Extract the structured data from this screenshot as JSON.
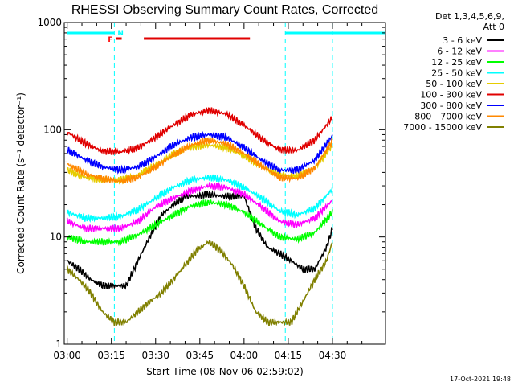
{
  "chart_data": {
    "type": "line",
    "title": "RHESSI Observing Summary Count Rates, Corrected",
    "xlabel": "Start Time (08-Nov-06 02:59:02)",
    "ylabel": "Corrected Count Rate (s⁻¹ detector⁻¹)",
    "x_ticks": [
      "03:00",
      "03:15",
      "03:30",
      "03:45",
      "04:00",
      "04:15",
      "04:30"
    ],
    "x_tick_minutes": [
      0,
      15,
      30,
      45,
      60,
      75,
      90
    ],
    "xlim_minutes": [
      -1,
      108
    ],
    "y_scale": "log",
    "ylim": [
      1,
      1000
    ],
    "y_ticks": [
      "1",
      "10",
      "100",
      "1000"
    ],
    "y_tick_values": [
      1,
      10,
      100,
      1000
    ],
    "legend_header": [
      "Det 1,3,4,5,6,9,",
      "Att 0"
    ],
    "legend_position": "right",
    "series": [
      {
        "name": "3 - 6 keV",
        "color": "#000000",
        "x": [
          0,
          4,
          8,
          12,
          16,
          20,
          24,
          28,
          32,
          36,
          40,
          44,
          48,
          52,
          56,
          60,
          64,
          68,
          72,
          76,
          80,
          84,
          88,
          90
        ],
        "y": [
          6,
          5,
          4,
          3.5,
          3.5,
          3.5,
          6,
          10,
          16,
          20,
          24,
          24,
          25,
          24,
          24,
          24,
          12,
          8,
          7,
          6,
          5,
          5,
          8,
          12
        ]
      },
      {
        "name": "6 - 12 keV",
        "color": "#ff00ff",
        "x": [
          0,
          6,
          12,
          18,
          24,
          30,
          36,
          42,
          48,
          54,
          60,
          66,
          72,
          78,
          84,
          90
        ],
        "y": [
          14,
          12,
          12,
          12,
          14,
          19,
          23,
          27,
          30,
          29,
          25,
          19,
          14,
          13,
          15,
          22
        ]
      },
      {
        "name": "12 - 25 keV",
        "color": "#00ff00",
        "x": [
          0,
          6,
          12,
          18,
          24,
          30,
          36,
          42,
          48,
          54,
          60,
          66,
          72,
          78,
          84,
          90
        ],
        "y": [
          10,
          9,
          9,
          9,
          10.5,
          13,
          16,
          19.5,
          21,
          20,
          17,
          13,
          10,
          9.5,
          11,
          17
        ]
      },
      {
        "name": "25 - 50 keV",
        "color": "#00ffff",
        "x": [
          0,
          6,
          12,
          18,
          24,
          30,
          36,
          42,
          48,
          54,
          60,
          66,
          72,
          78,
          84,
          90
        ],
        "y": [
          17,
          15,
          15,
          15.5,
          18,
          23,
          29,
          34,
          36,
          34,
          29,
          23,
          17.5,
          16,
          18.5,
          28
        ]
      },
      {
        "name": "50 - 100 keV",
        "color": "#e6cc00",
        "x": [
          0,
          6,
          12,
          18,
          24,
          30,
          36,
          42,
          48,
          54,
          60,
          66,
          72,
          78,
          84,
          90
        ],
        "y": [
          42,
          36,
          34,
          34,
          38,
          47,
          59,
          69,
          72,
          68,
          57,
          45,
          38,
          37,
          44,
          72
        ]
      },
      {
        "name": "100 - 300 keV",
        "color": "#e00000",
        "x": [
          0,
          6,
          12,
          18,
          24,
          30,
          36,
          42,
          48,
          54,
          60,
          66,
          72,
          78,
          84,
          90
        ],
        "y": [
          95,
          75,
          63,
          62,
          68,
          85,
          110,
          138,
          152,
          140,
          110,
          82,
          65,
          64,
          80,
          130
        ]
      },
      {
        "name": "300 - 800 keV",
        "color": "#0000ff",
        "x": [
          0,
          6,
          12,
          18,
          24,
          30,
          36,
          42,
          48,
          54,
          60,
          66,
          72,
          78,
          84,
          90
        ],
        "y": [
          65,
          53,
          45,
          42,
          45,
          56,
          72,
          85,
          90,
          85,
          68,
          52,
          42,
          42,
          52,
          88
        ]
      },
      {
        "name": "800 - 7000 keV",
        "color": "#ff8800",
        "x": [
          0,
          6,
          12,
          18,
          24,
          30,
          36,
          42,
          48,
          54,
          60,
          66,
          72,
          78,
          84,
          90
        ],
        "y": [
          48,
          39,
          35,
          33,
          36,
          45,
          58,
          72,
          80,
          74,
          60,
          46,
          36,
          35,
          44,
          78
        ]
      },
      {
        "name": "7000 - 15000 keV",
        "color": "#808000",
        "x": [
          0,
          4,
          8,
          12,
          16,
          20,
          24,
          28,
          32,
          36,
          40,
          44,
          48,
          52,
          56,
          60,
          64,
          68,
          72,
          76,
          80,
          84,
          88,
          90
        ],
        "y": [
          5,
          4,
          3,
          2,
          1.6,
          1.6,
          2,
          2.5,
          3,
          4,
          5.5,
          7.5,
          9,
          7.5,
          5.5,
          3.5,
          2,
          1.6,
          1.6,
          1.6,
          2.5,
          4,
          6,
          9
        ]
      }
    ],
    "annotations": {
      "flag_labels": [
        {
          "text": "F",
          "color": "#ff0000"
        },
        {
          "text": "N",
          "color": "#00ffff"
        }
      ],
      "day_segments_minutes": [
        [
          0,
          16
        ],
        [
          74,
          108
        ]
      ],
      "flare_segment_minutes": [
        26,
        62
      ],
      "night_boundaries_minutes": [
        16,
        74,
        90
      ]
    }
  },
  "footer": {
    "timestamp": "17-Oct-2021 19:48"
  }
}
